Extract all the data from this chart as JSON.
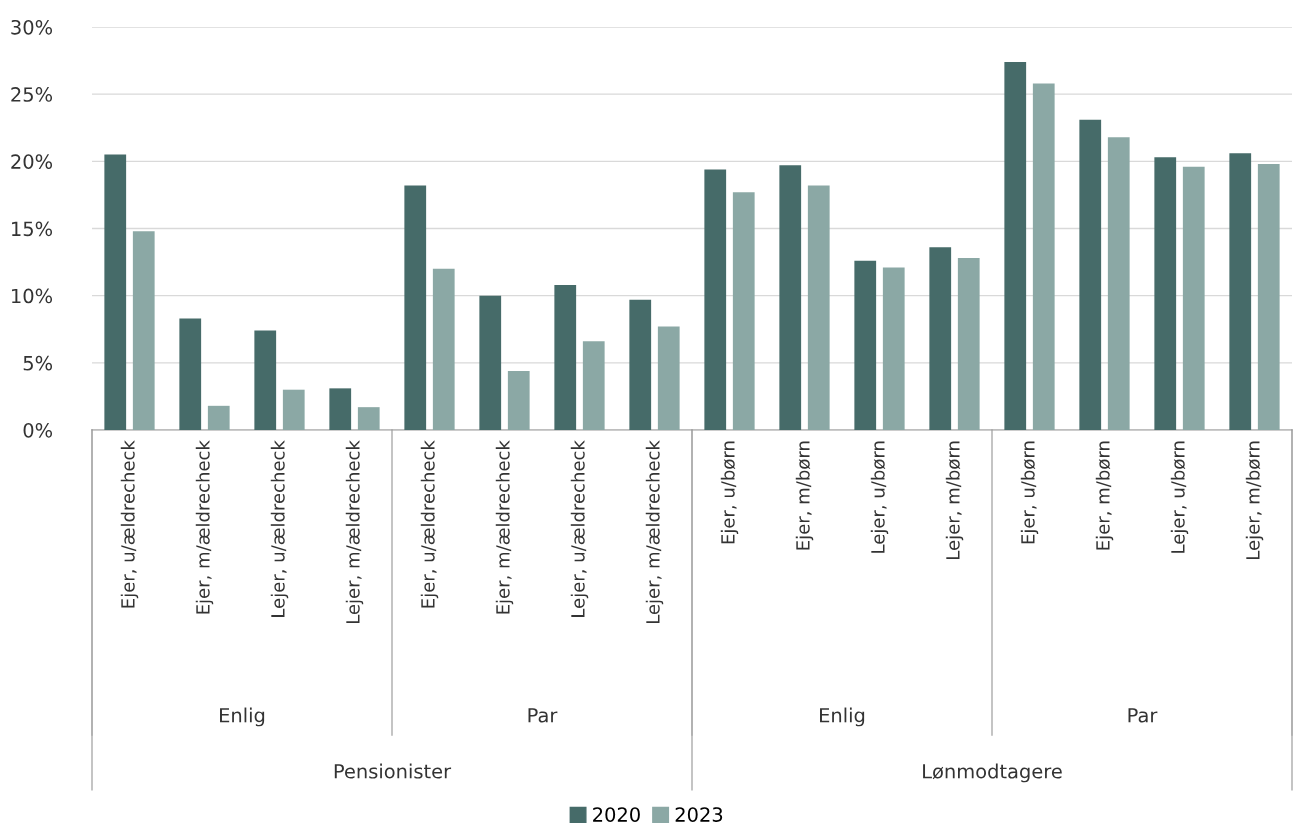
{
  "chart_data": {
    "type": "bar",
    "categories": [
      "Ejer, u/ældrecheck",
      "Ejer, m/ældrecheck",
      "Lejer, u/ældrecheck",
      "Lejer, m/ældrecheck",
      "Ejer, u/ældrecheck",
      "Ejer, m/ældrecheck",
      "Lejer, u/ældrecheck",
      "Lejer, m/ældrecheck",
      "Ejer, u/børn",
      "Ejer, m/børn",
      "Lejer, u/børn",
      "Lejer, m/børn",
      "Ejer, u/børn",
      "Ejer, m/børn",
      "Lejer, u/børn",
      "Lejer, m/børn"
    ],
    "series": [
      {
        "name": "2020",
        "color": "#466b69",
        "values": [
          20.5,
          8.3,
          7.4,
          3.1,
          18.2,
          10.0,
          10.8,
          9.7,
          19.4,
          19.7,
          12.6,
          13.6,
          27.4,
          23.1,
          20.3,
          20.6
        ]
      },
      {
        "name": "2023",
        "color": "#8ba8a5",
        "values": [
          14.8,
          1.8,
          3.0,
          1.7,
          12.0,
          4.4,
          6.6,
          7.7,
          17.7,
          18.2,
          12.1,
          12.8,
          25.8,
          21.8,
          19.6,
          19.8
        ]
      }
    ],
    "annotations": [
      "Enlig",
      "Par",
      "Enlig",
      "Par",
      "Pensionister",
      "Lønmodtagere"
    ],
    "ylim": [
      0,
      30
    ],
    "yticks": [
      {
        "value": 0,
        "label": "0%"
      },
      {
        "value": 5,
        "label": "5%"
      },
      {
        "value": 10,
        "label": "10%"
      },
      {
        "value": 15,
        "label": "15%"
      },
      {
        "value": 20,
        "label": "20%"
      },
      {
        "value": 25,
        "label": "25%"
      },
      {
        "value": 30,
        "label": "30%"
      }
    ],
    "grid": "y",
    "legend": "bottom"
  }
}
